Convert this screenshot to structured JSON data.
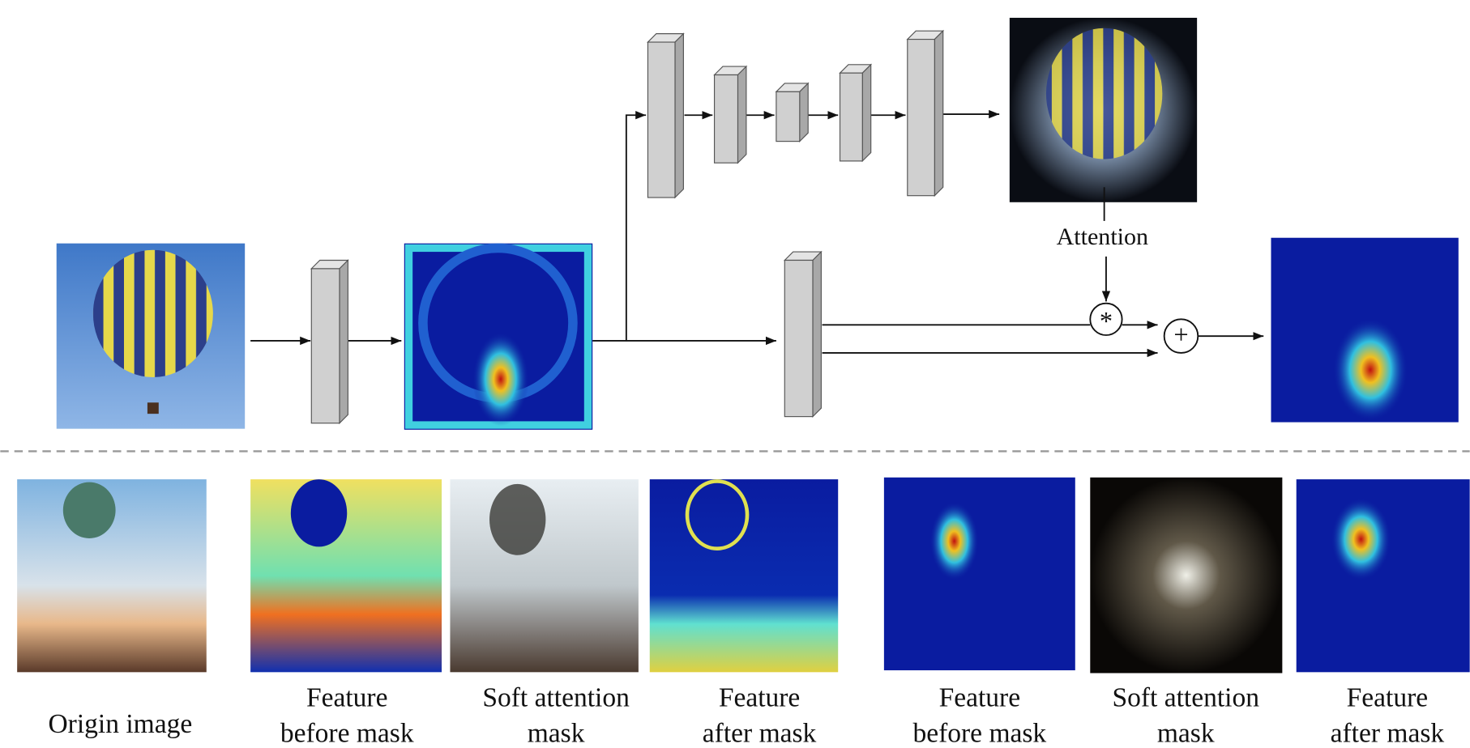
{
  "labels": {
    "attention": "Attention",
    "multiply": "*",
    "add": "+"
  },
  "captions": [
    {
      "lines": [
        "Origin image"
      ]
    },
    {
      "lines": [
        "Feature",
        "before mask"
      ]
    },
    {
      "lines": [
        "Soft attention",
        "mask"
      ]
    },
    {
      "lines": [
        "Feature",
        "after mask"
      ]
    },
    {
      "lines": [
        "Feature",
        "before mask"
      ]
    },
    {
      "lines": [
        "Soft attention",
        "mask"
      ]
    },
    {
      "lines": [
        "Feature",
        "after mask"
      ]
    }
  ]
}
